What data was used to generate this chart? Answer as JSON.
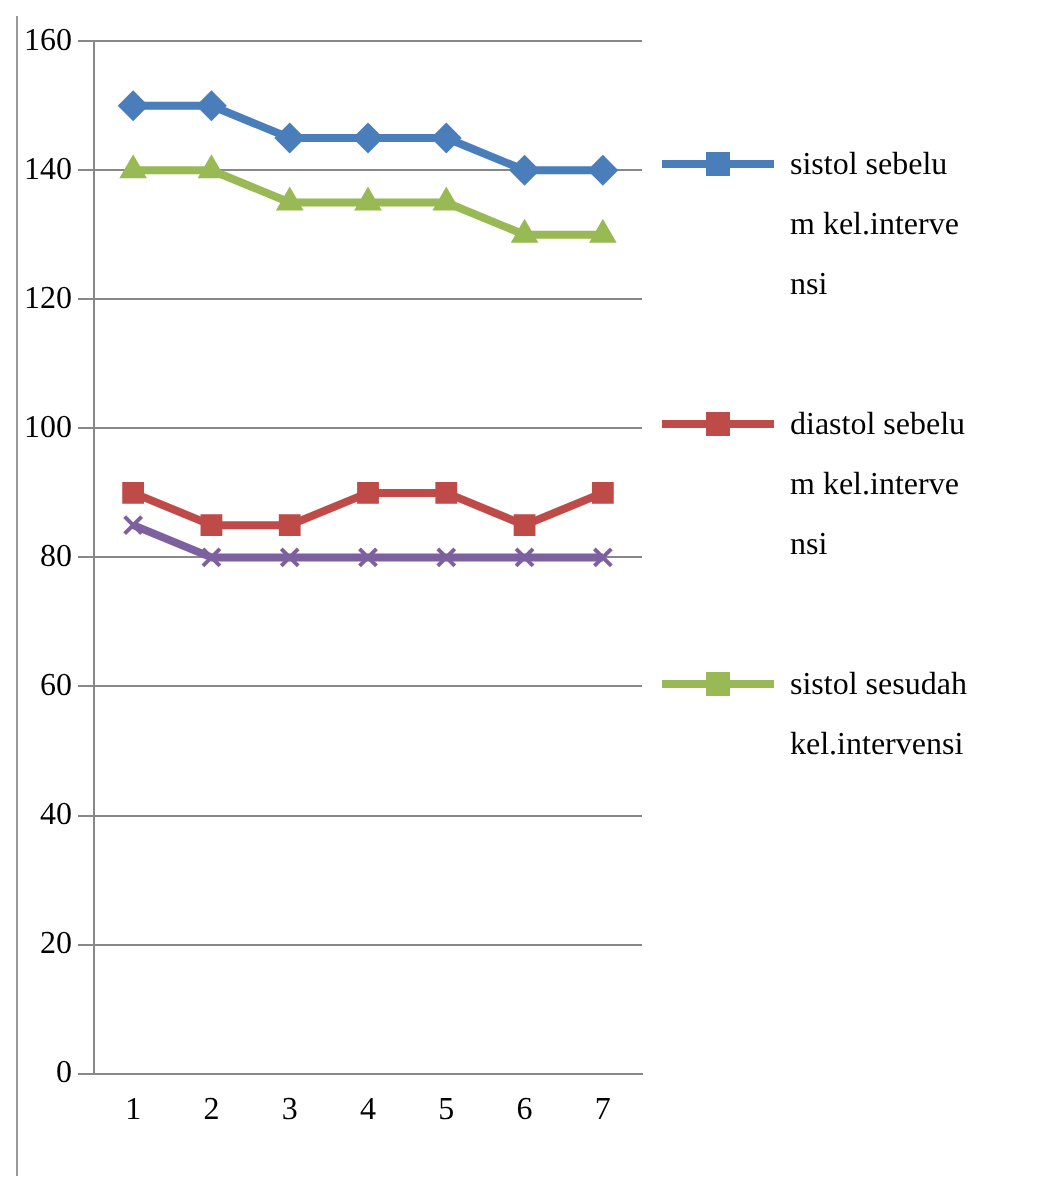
{
  "chart_data": {
    "type": "line",
    "categories": [
      "1",
      "2",
      "3",
      "4",
      "5",
      "6",
      "7"
    ],
    "series": [
      {
        "name": "sistol sebelum kel.intervensi",
        "color": "#4a7ebb",
        "marker": "diamond",
        "values": [
          150,
          150,
          145,
          145,
          145,
          140,
          140
        ]
      },
      {
        "name": "diastol sebelum kel.intervensi",
        "color": "#be4b48",
        "marker": "square",
        "values": [
          90,
          85,
          85,
          90,
          90,
          85,
          90
        ]
      },
      {
        "name": "sistol sesudah kel.intervensi",
        "color": "#98b954",
        "marker": "triangle",
        "values": [
          140,
          140,
          135,
          135,
          135,
          130,
          130
        ]
      },
      {
        "color": "#7d60a0",
        "marker": "cross",
        "values": [
          85,
          80,
          80,
          80,
          80,
          80,
          80
        ]
      }
    ],
    "ylim": [
      0,
      160
    ],
    "yticks": [
      0,
      20,
      40,
      60,
      80,
      100,
      120,
      140,
      160
    ],
    "grid": "y",
    "legend": "right"
  }
}
